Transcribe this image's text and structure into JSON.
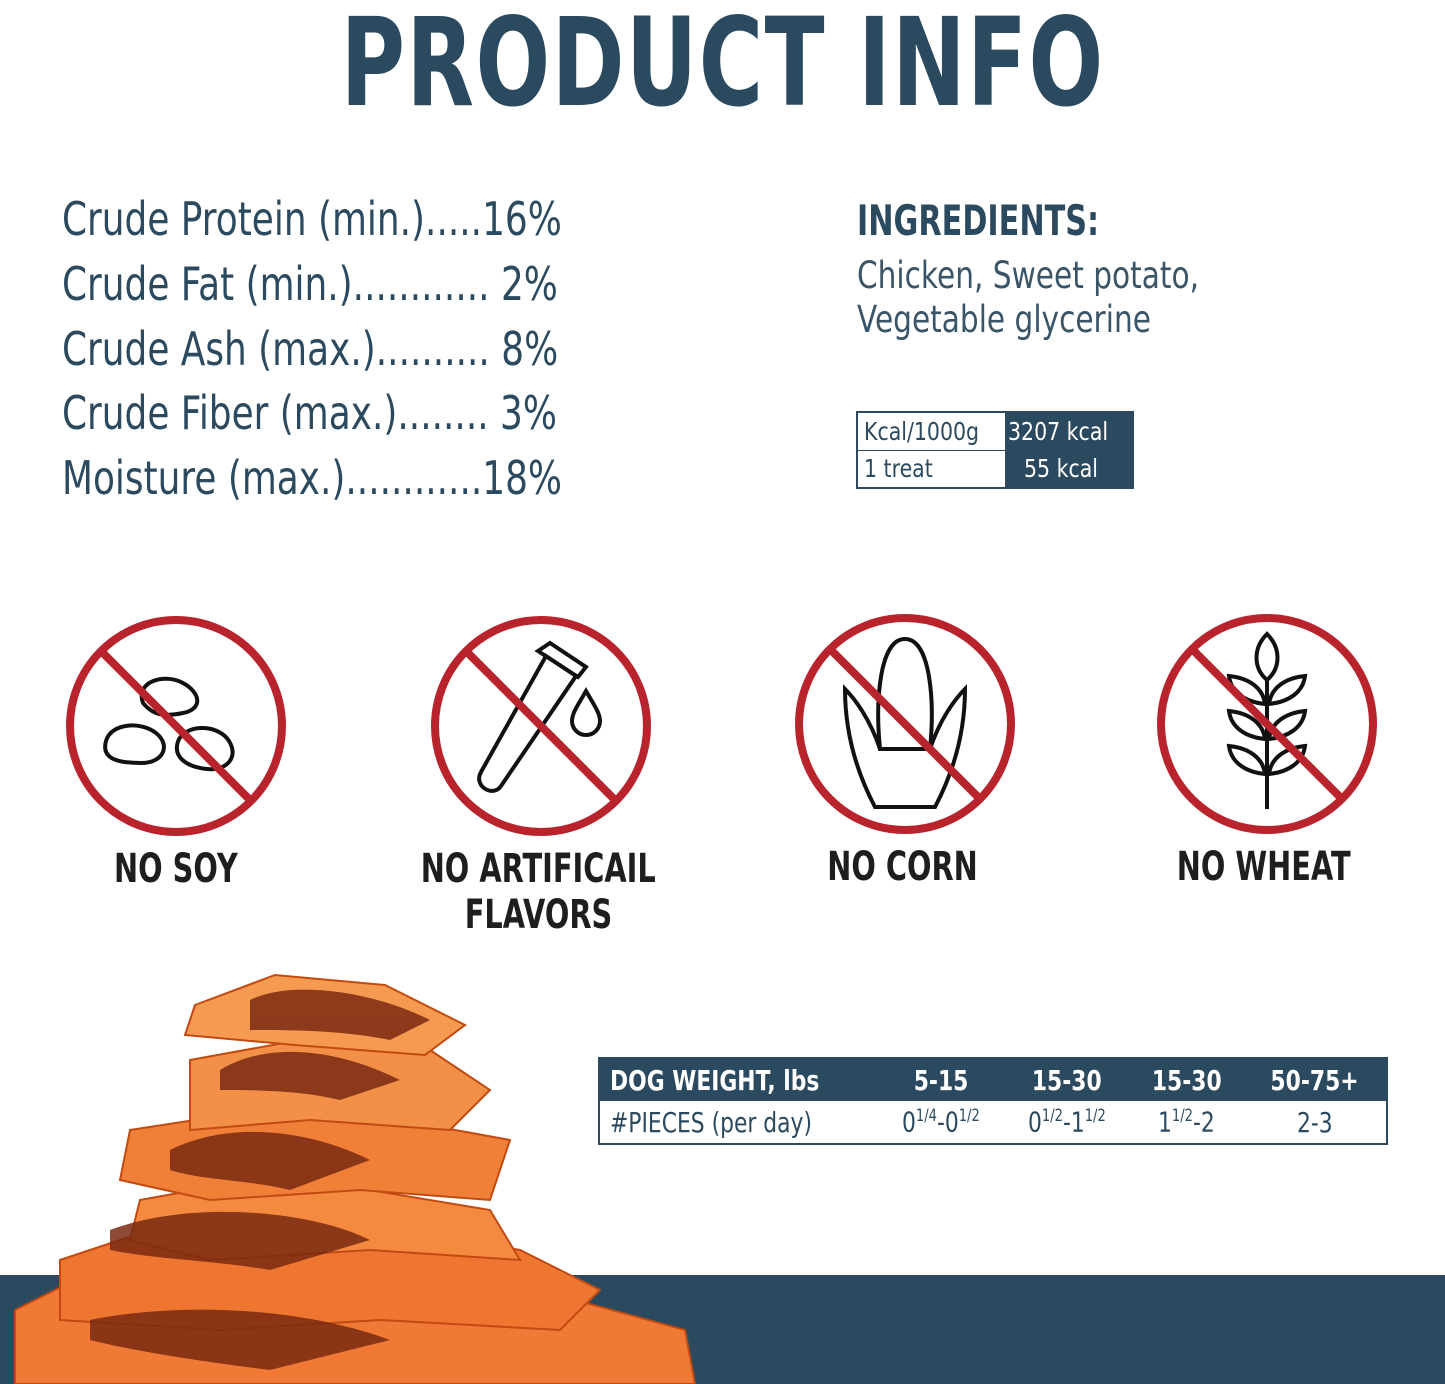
{
  "title": "PRODUCT INFO",
  "nutrients": [
    {
      "label": "Crude Protein (min.)",
      "dots": ".....",
      "value": "16%"
    },
    {
      "label": "Crude Fat (min.)",
      "dots": "............",
      "value": "2%"
    },
    {
      "label": "Crude Ash (max.)",
      "dots": "..........",
      "value": "8%"
    },
    {
      "label": "Crude Fiber (max.)",
      "dots": "........",
      "value": "3%"
    },
    {
      "label": "Moisture (max.)",
      "dots": "............",
      "value": "18%"
    }
  ],
  "ingredients": {
    "heading": "INGREDIENTS:",
    "lines": [
      "Chicken, Sweet potato,",
      "Vegetable glycerine"
    ]
  },
  "calories": [
    {
      "label": "Kcal/1000g",
      "value": "3207 kcal"
    },
    {
      "label": "1 treat",
      "value": "55 kcal"
    }
  ],
  "badges": [
    {
      "icon": "no-soy-icon",
      "label": [
        "NO SOY"
      ]
    },
    {
      "icon": "no-artificial-flavors-icon",
      "label": [
        "NO ARTIFICAIL",
        "FLAVORS"
      ]
    },
    {
      "icon": "no-corn-icon",
      "label": [
        "NO CORN"
      ]
    },
    {
      "icon": "no-wheat-icon",
      "label": [
        "NO WHEAT"
      ]
    }
  ],
  "feeding": {
    "header": [
      "DOG WEIGHT, lbs",
      "5-15",
      "15-30",
      "15-30",
      "50-75+"
    ],
    "row_label": "#PIECES (per day)",
    "pieces": [
      [
        [
          "0",
          ""
        ],
        [
          "",
          "1/4"
        ],
        [
          "-0",
          ""
        ],
        [
          "",
          "1/2"
        ]
      ],
      [
        [
          "0",
          ""
        ],
        [
          "",
          "1/2"
        ],
        [
          "-1",
          ""
        ],
        [
          "",
          "1/2"
        ]
      ],
      [
        [
          "1",
          ""
        ],
        [
          "",
          "1/2"
        ],
        [
          "-2",
          ""
        ]
      ],
      [
        [
          "2-3",
          ""
        ]
      ]
    ]
  },
  "colors": {
    "navy": "#2c4a5f",
    "prohibition_red": "#b8232c"
  }
}
